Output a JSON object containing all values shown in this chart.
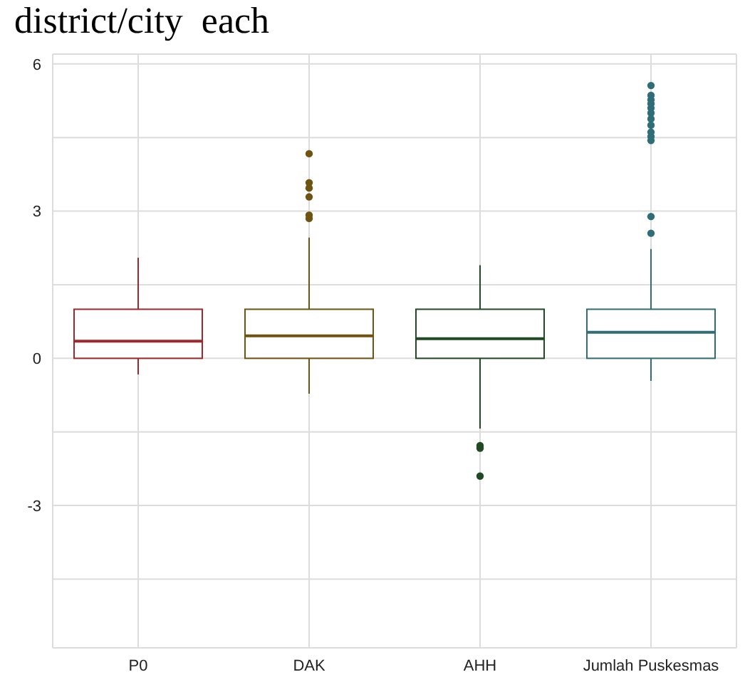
{
  "chart_data": {
    "type": "box",
    "title": "district/city  each",
    "categories": [
      "P0",
      "DAK",
      "AHH",
      "Jumlah  Puskesmas"
    ],
    "colors": [
      "#a0282a",
      "#6e5410",
      "#1f4a22",
      "#2f6e76"
    ],
    "boxes": [
      {
        "low": -0.33,
        "q1": 0,
        "median": 0.35,
        "q3": 1,
        "high": 2.05
      },
      {
        "low": -0.72,
        "q1": 0,
        "median": 0.46,
        "q3": 1,
        "high": 2.46,
        "outliers": [
          4.17,
          3.58,
          3.47,
          3.29,
          2.92,
          2.85
        ]
      },
      {
        "low": -1.43,
        "q1": 0,
        "median": 0.4,
        "q3": 1,
        "high": 1.9,
        "outliers": [
          -1.78,
          -1.83,
          -2.4
        ]
      },
      {
        "low": -0.46,
        "q1": 0,
        "median": 0.53,
        "q3": 1,
        "high": 2.23,
        "outliers": [
          2.55,
          2.89,
          4.44,
          4.52,
          4.61,
          4.75,
          4.88,
          5.0,
          5.1,
          5.19,
          5.27,
          5.36,
          5.56
        ]
      }
    ],
    "ylim": [
      -5.9,
      6.2
    ],
    "yticks": [
      {
        "value": -4.5,
        "label": null
      },
      -3,
      {
        "value": -1.5,
        "label": null
      },
      0,
      {
        "value": 1.5,
        "label": null
      },
      3,
      {
        "value": 4.5,
        "label": null
      },
      6
    ],
    "grid": true,
    "legend": false
  }
}
